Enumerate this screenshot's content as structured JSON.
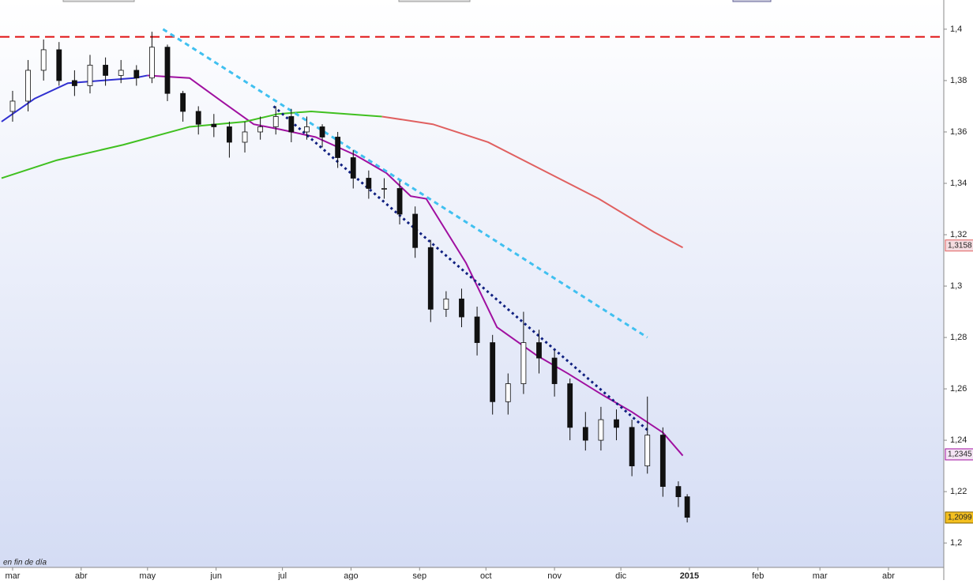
{
  "chart_data": {
    "type": "candlestick",
    "note_label": "en fin de día",
    "xlim": [
      -5.7,
      421
    ],
    "ylim": [
      1.1905,
      1.4089
    ],
    "xticks": [
      {
        "value": 0,
        "label": "mar"
      },
      {
        "value": 31,
        "label": "abr"
      },
      {
        "value": 61,
        "label": "may"
      },
      {
        "value": 92,
        "label": "jun"
      },
      {
        "value": 122,
        "label": "jul"
      },
      {
        "value": 153,
        "label": "ago"
      },
      {
        "value": 184,
        "label": "sep"
      },
      {
        "value": 214,
        "label": "oct"
      },
      {
        "value": 245,
        "label": "nov"
      },
      {
        "value": 275,
        "label": "dic"
      },
      {
        "value": 306,
        "label": "2015"
      },
      {
        "value": 337,
        "label": "feb"
      },
      {
        "value": 365,
        "label": "mar"
      },
      {
        "value": 396,
        "label": "abr"
      }
    ],
    "yticks": [
      {
        "value": 1.2,
        "label": "1,2"
      },
      {
        "value": 1.22,
        "label": "1,22"
      },
      {
        "value": 1.24,
        "label": "1,24"
      },
      {
        "value": 1.26,
        "label": "1,26"
      },
      {
        "value": 1.28,
        "label": "1,28"
      },
      {
        "value": 1.3,
        "label": "1,3"
      },
      {
        "value": 1.32,
        "label": "1,32"
      },
      {
        "value": 1.34,
        "label": "1,34"
      },
      {
        "value": 1.36,
        "label": "1,36"
      },
      {
        "value": 1.38,
        "label": "1,38"
      },
      {
        "value": 1.4,
        "label": "1,4"
      }
    ],
    "x": [
      0,
      7,
      14,
      21,
      28,
      35,
      42,
      49,
      56,
      63,
      70,
      77,
      84,
      91,
      98,
      105,
      112,
      119,
      126,
      133,
      140,
      147,
      154,
      161,
      168,
      175,
      182,
      189,
      196,
      203,
      210,
      217,
      224,
      231,
      238,
      245,
      252,
      259,
      266,
      273,
      280,
      287,
      294,
      301,
      305
    ],
    "open": [
      1.368,
      1.372,
      1.384,
      1.392,
      1.38,
      1.378,
      1.386,
      1.382,
      1.384,
      1.381,
      1.393,
      1.375,
      1.368,
      1.363,
      1.362,
      1.356,
      1.36,
      1.362,
      1.366,
      1.36,
      1.362,
      1.358,
      1.35,
      1.342,
      1.338,
      1.338,
      1.328,
      1.315,
      1.291,
      1.295,
      1.288,
      1.278,
      1.255,
      1.262,
      1.278,
      1.272,
      1.262,
      1.245,
      1.24,
      1.248,
      1.245,
      1.23,
      1.242,
      1.222,
      1.218
    ],
    "close": [
      1.372,
      1.384,
      1.392,
      1.38,
      1.378,
      1.386,
      1.382,
      1.384,
      1.381,
      1.393,
      1.375,
      1.368,
      1.363,
      1.362,
      1.356,
      1.36,
      1.362,
      1.366,
      1.36,
      1.362,
      1.358,
      1.35,
      1.342,
      1.338,
      1.338,
      1.328,
      1.315,
      1.291,
      1.295,
      1.288,
      1.278,
      1.255,
      1.262,
      1.278,
      1.272,
      1.262,
      1.245,
      1.24,
      1.248,
      1.245,
      1.23,
      1.242,
      1.222,
      1.218,
      1.21
    ],
    "high": [
      1.376,
      1.388,
      1.396,
      1.395,
      1.384,
      1.39,
      1.389,
      1.388,
      1.386,
      1.399,
      1.394,
      1.376,
      1.37,
      1.367,
      1.364,
      1.364,
      1.366,
      1.37,
      1.369,
      1.366,
      1.363,
      1.36,
      1.353,
      1.345,
      1.342,
      1.341,
      1.331,
      1.318,
      1.298,
      1.299,
      1.292,
      1.281,
      1.266,
      1.29,
      1.283,
      1.275,
      1.264,
      1.251,
      1.253,
      1.252,
      1.248,
      1.257,
      1.245,
      1.224,
      1.219
    ],
    "low": [
      1.364,
      1.368,
      1.38,
      1.378,
      1.374,
      1.375,
      1.378,
      1.379,
      1.378,
      1.379,
      1.372,
      1.364,
      1.359,
      1.358,
      1.35,
      1.352,
      1.357,
      1.359,
      1.356,
      1.357,
      1.354,
      1.346,
      1.338,
      1.334,
      1.334,
      1.324,
      1.311,
      1.286,
      1.288,
      1.284,
      1.273,
      1.25,
      1.25,
      1.258,
      1.266,
      1.257,
      1.24,
      1.236,
      1.236,
      1.24,
      1.226,
      1.227,
      1.218,
      1.214,
      1.208
    ],
    "up_color": "#ffffff",
    "down_color": "#111111",
    "wick_color": "#111111",
    "lines": [
      {
        "color": "#3030d0",
        "x": [
          -5,
          10,
          25,
          40,
          55,
          61
        ],
        "values": [
          1.364,
          1.373,
          1.379,
          1.38,
          1.381,
          1.382
        ]
      },
      {
        "color": "#a010a0",
        "x": [
          61,
          80,
          96,
          109,
          121,
          137,
          155,
          169,
          180,
          187,
          205,
          219,
          237,
          251,
          266,
          280,
          294,
          303
        ],
        "values": [
          1.382,
          1.381,
          1.371,
          1.363,
          1.361,
          1.358,
          1.351,
          1.344,
          1.335,
          1.334,
          1.309,
          1.284,
          1.273,
          1.266,
          1.258,
          1.251,
          1.243,
          1.234
        ]
      },
      {
        "color": "#40c020",
        "x": [
          -5,
          20,
          50,
          80,
          105,
          120,
          135,
          167
        ],
        "values": [
          1.342,
          1.349,
          1.355,
          1.362,
          1.364,
          1.367,
          1.368,
          1.366
        ]
      },
      {
        "color": "#e06060",
        "x": [
          167,
          190,
          215,
          240,
          265,
          290,
          303
        ],
        "values": [
          1.366,
          1.363,
          1.356,
          1.345,
          1.334,
          1.321,
          1.315
        ]
      },
      {
        "color": "#40c0f0",
        "dash": "6 5",
        "x": [
          68,
          287
        ],
        "values": [
          1.4,
          1.28
        ]
      },
      {
        "color": "#102080",
        "dash": "3 4",
        "x": [
          118,
          287
        ],
        "values": [
          1.37,
          1.244
        ]
      }
    ],
    "reference_line": {
      "value": 1.397,
      "color": "#e01010"
    },
    "price_tags": [
      {
        "value": 1.3158,
        "label": "1,3158",
        "color": "#f4dce0",
        "border": "#e06060"
      },
      {
        "value": 1.2345,
        "label": "1,2345",
        "color": "#f4e4f4",
        "border": "#a010a0"
      },
      {
        "value": 1.2099,
        "label": "1,2099",
        "color": "#f4c020",
        "border": "#806000"
      }
    ]
  }
}
